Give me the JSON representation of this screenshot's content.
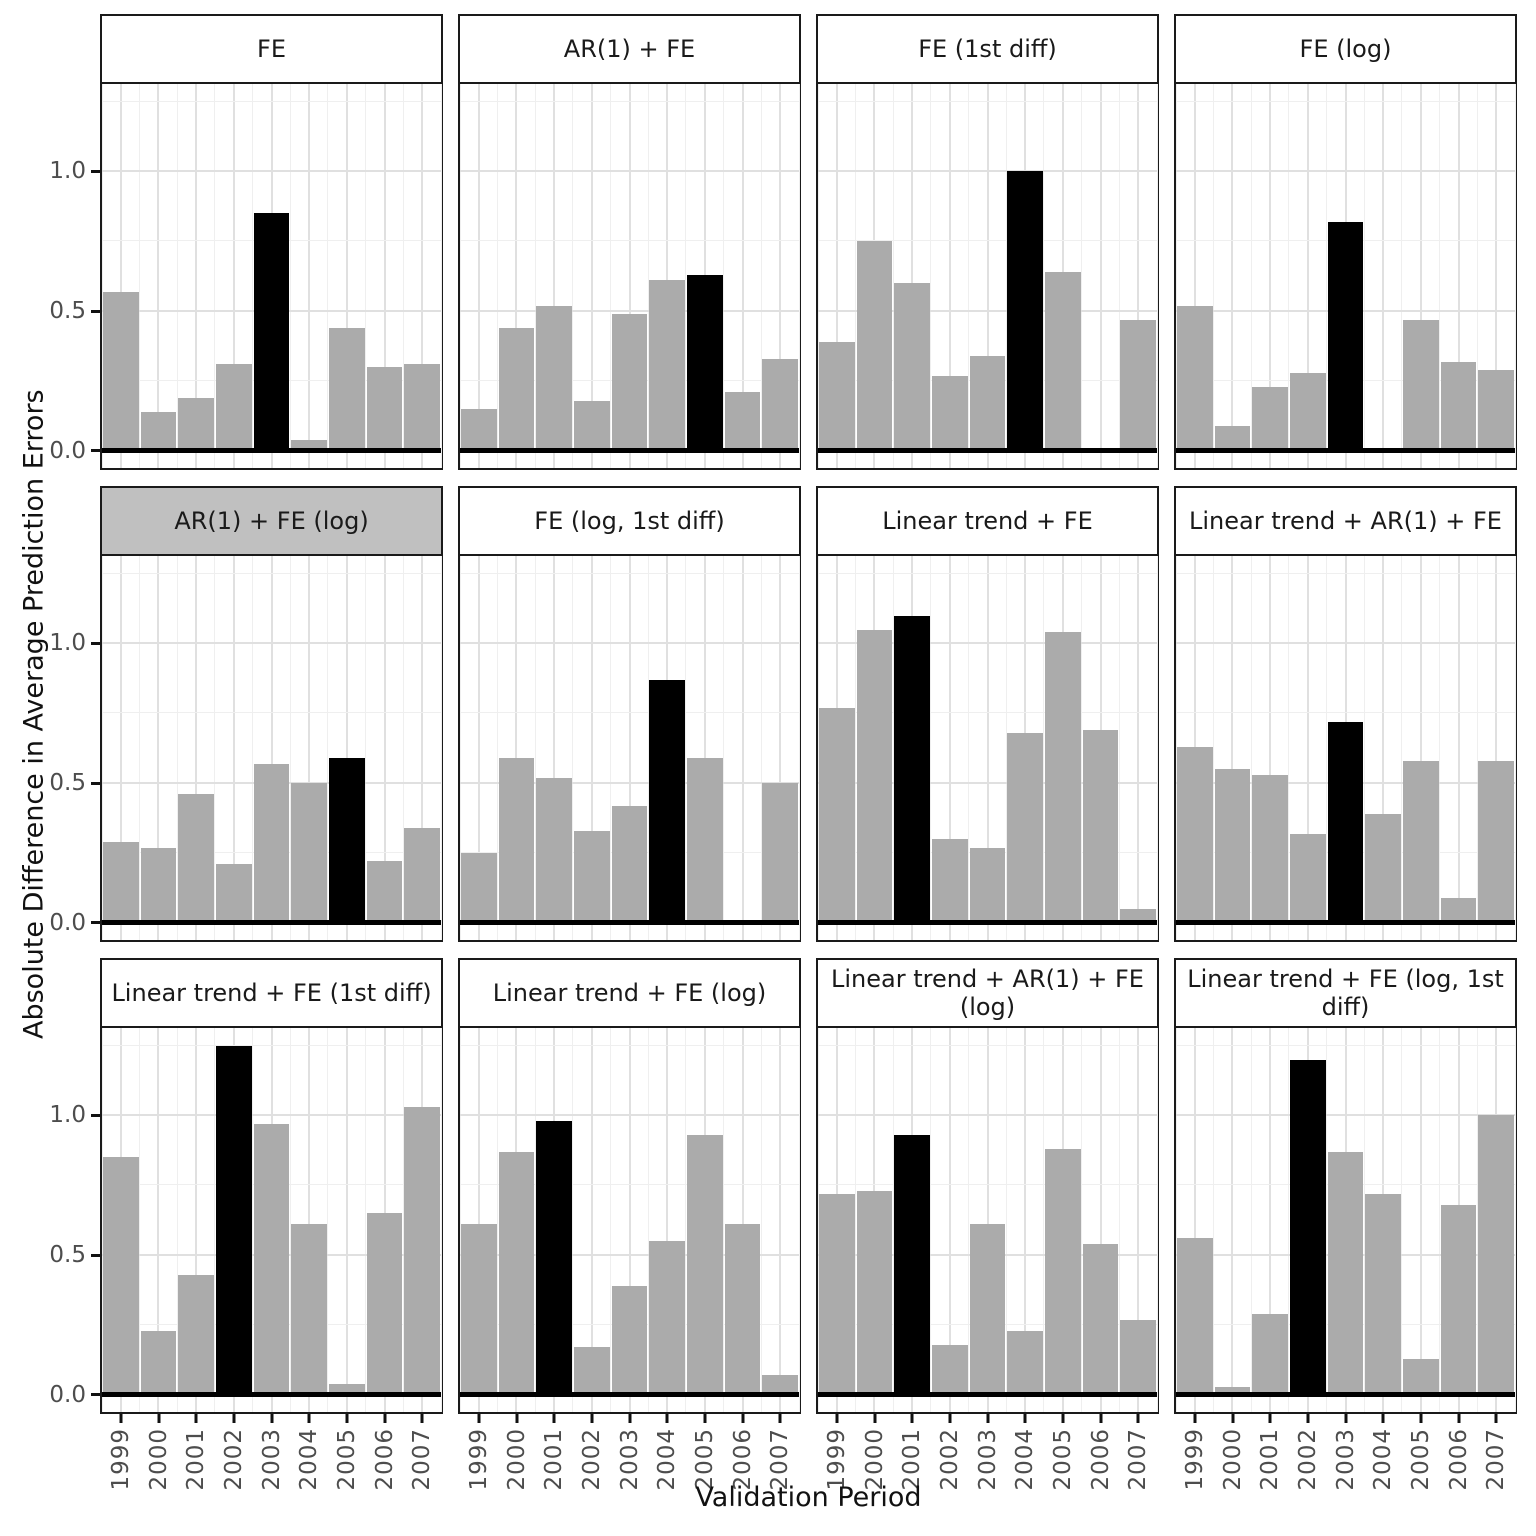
{
  "figure": {
    "xlabel": "Validation Period",
    "ylabel": "Absolute Difference in Average Prediction Errors"
  },
  "chart_data": {
    "type": "bar",
    "title": "",
    "xlabel": "Validation Period",
    "ylabel": "Absolute Difference in Average Prediction Errors",
    "categories": [
      "1999",
      "2000",
      "2001",
      "2002",
      "2003",
      "2004",
      "2005",
      "2006",
      "2007"
    ],
    "y_axis": {
      "tick_labels": [
        "0.0",
        "0.5",
        "1.0"
      ],
      "tick_values": [
        0.0,
        0.5,
        1.0
      ],
      "minor_values": [
        0.25,
        0.75,
        1.25
      ],
      "ylim": [
        -0.061,
        1.313
      ],
      "grid": true
    },
    "layout": {
      "facet_rows": 3,
      "facet_cols": 4,
      "legend_position": "none"
    },
    "colors": {
      "bar": "#ABABAB",
      "highlight": "#000000",
      "strip_background": "#FFFFFF",
      "strip_highlight_background": "#C0C0C0",
      "panel_border": "#1a1a1a",
      "grid_major": "#E0E0E0",
      "grid_minor": "#EFEFEF",
      "tick_label": "#4d4d4d",
      "zero_line": "#000000"
    },
    "panels": [
      {
        "title": "FE",
        "highlight_year": "2003",
        "strip_highlighted": false,
        "values": [
          0.57,
          0.14,
          0.19,
          0.31,
          0.85,
          0.04,
          0.44,
          0.3,
          0.31
        ]
      },
      {
        "title": "AR(1) + FE",
        "highlight_year": "2005",
        "strip_highlighted": false,
        "values": [
          0.15,
          0.44,
          0.52,
          0.18,
          0.49,
          0.61,
          0.63,
          0.21,
          0.33
        ]
      },
      {
        "title": "FE (1st diff)",
        "highlight_year": "2004",
        "strip_highlighted": false,
        "values": [
          0.39,
          0.75,
          0.6,
          0.27,
          0.34,
          1.0,
          0.64,
          0.01,
          0.47
        ]
      },
      {
        "title": "FE (log)",
        "highlight_year": "2003",
        "strip_highlighted": false,
        "values": [
          0.52,
          0.09,
          0.23,
          0.28,
          0.82,
          0.0,
          0.47,
          0.32,
          0.29
        ]
      },
      {
        "title": "AR(1) + FE (log)",
        "highlight_year": "2005",
        "strip_highlighted": true,
        "values": [
          0.29,
          0.27,
          0.46,
          0.21,
          0.57,
          0.5,
          0.59,
          0.22,
          0.34
        ]
      },
      {
        "title": "FE (log, 1st diff)",
        "highlight_year": "2004",
        "strip_highlighted": false,
        "values": [
          0.25,
          0.59,
          0.52,
          0.33,
          0.42,
          0.87,
          0.59,
          0.0,
          0.5
        ]
      },
      {
        "title": "Linear trend + FE",
        "highlight_year": "2001",
        "strip_highlighted": false,
        "values": [
          0.77,
          1.05,
          1.1,
          0.3,
          0.27,
          0.68,
          1.04,
          0.69,
          0.05
        ]
      },
      {
        "title": "Linear trend + AR(1) + FE",
        "highlight_year": "2003",
        "strip_highlighted": false,
        "values": [
          0.63,
          0.55,
          0.53,
          0.32,
          0.72,
          0.39,
          0.58,
          0.09,
          0.58
        ]
      },
      {
        "title": "Linear trend + FE (1st diff)",
        "highlight_year": "2002",
        "strip_highlighted": false,
        "values": [
          0.85,
          0.23,
          0.43,
          1.25,
          0.97,
          0.61,
          0.04,
          0.65,
          1.03
        ]
      },
      {
        "title": "Linear trend + FE (log)",
        "highlight_year": "2001",
        "strip_highlighted": false,
        "values": [
          0.61,
          0.87,
          0.98,
          0.17,
          0.39,
          0.55,
          0.93,
          0.61,
          0.07
        ]
      },
      {
        "title": "Linear trend + AR(1) + FE (log)",
        "highlight_year": "2001",
        "strip_highlighted": false,
        "values": [
          0.72,
          0.73,
          0.93,
          0.18,
          0.61,
          0.23,
          0.88,
          0.54,
          0.27
        ]
      },
      {
        "title": "Linear trend + FE (log, 1st diff)",
        "highlight_year": "2002",
        "strip_highlighted": false,
        "values": [
          0.56,
          0.03,
          0.29,
          1.2,
          0.87,
          0.72,
          0.13,
          0.68,
          1.0
        ]
      }
    ]
  }
}
